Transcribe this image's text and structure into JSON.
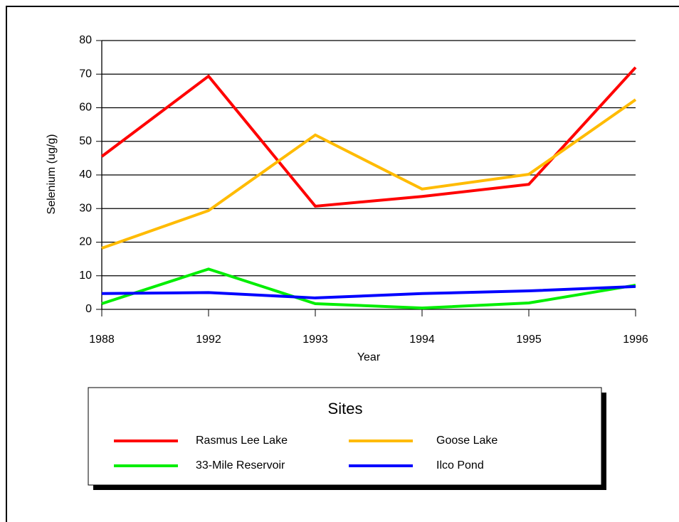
{
  "chart_data": {
    "type": "line",
    "x_label": "Year",
    "y_label": "Selenium (ug/g)",
    "legend_title": "Sites",
    "categories": [
      "1988",
      "1992",
      "1993",
      "1994",
      "1995",
      "1996"
    ],
    "series": [
      {
        "name": "Rasmus Lee Lake",
        "color": "#ff0000",
        "values": [
          45.5,
          69.4,
          30.7,
          33.6,
          37.2,
          72
        ]
      },
      {
        "name": "Goose Lake",
        "color": "#ffbb00",
        "values": [
          18.2,
          29.4,
          51.9,
          35.8,
          40.2,
          62.4
        ]
      },
      {
        "name": "33-Mile Reservoir",
        "color": "#00ee00",
        "values": [
          1.7,
          12,
          1.7,
          0.4,
          1.9,
          7.2
        ]
      },
      {
        "name": "Ilco Pond",
        "color": "#0000ff",
        "values": [
          4.7,
          5,
          3.4,
          4.7,
          5.5,
          6.8
        ]
      }
    ],
    "ylim": [
      0,
      80
    ],
    "yticks": [
      0,
      10,
      20,
      30,
      40,
      50,
      60,
      70,
      80
    ],
    "grid": true
  }
}
